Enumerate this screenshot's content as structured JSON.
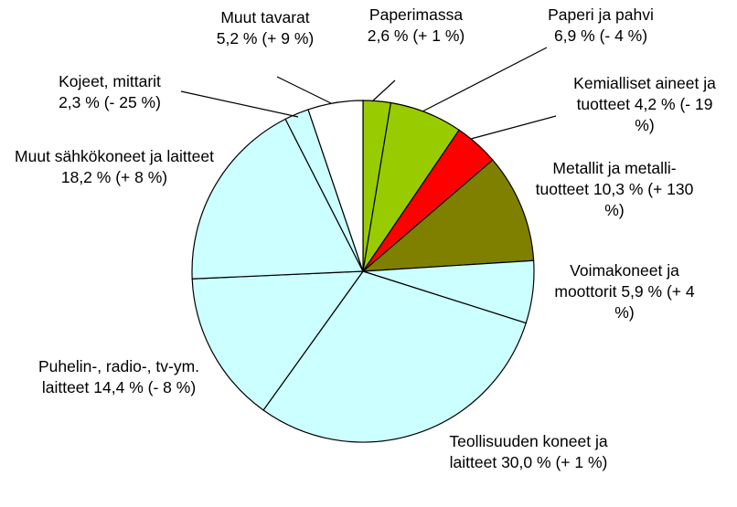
{
  "chart_data": {
    "type": "pie",
    "categories": [
      "Paperimassa",
      "Paperi ja pahvi",
      "Kemialliset aineet ja tuotteet",
      "Metallit ja metalli-tuotteet",
      "Voimakoneet ja moottorit",
      "Teollisuuden koneet ja laitteet",
      "Puhelin-, radio-, tv-ym. laitteet",
      "Muut sähkökoneet ja laitteet",
      "Kojeet, mittarit",
      "Muut tavarat"
    ],
    "values": [
      2.6,
      6.9,
      4.2,
      10.3,
      5.9,
      30.0,
      14.4,
      18.2,
      2.3,
      5.2
    ],
    "value_labels": [
      "2,6 %",
      "6,9 %",
      "4,2 %",
      "10,3 %",
      "5,9 %",
      "30,0 %",
      "14,4 %",
      "18,2 %",
      "2,3 %",
      "5,2 %"
    ],
    "changes": [
      "(+ 1 %)",
      "(- 4 %)",
      "(- 19 %)",
      "(+ 130 %)",
      "(+ 4 %)",
      "(+ 1 %)",
      "(- 8 %)",
      "(+ 8 %)",
      "(- 25 %)",
      "(+ 9 %)"
    ],
    "colors": [
      "#99cc00",
      "#99cc00",
      "#ff0000",
      "#808000",
      "#ccffff",
      "#ccffff",
      "#ccffff",
      "#ccffff",
      "#ccffff",
      "#ffffff"
    ]
  }
}
